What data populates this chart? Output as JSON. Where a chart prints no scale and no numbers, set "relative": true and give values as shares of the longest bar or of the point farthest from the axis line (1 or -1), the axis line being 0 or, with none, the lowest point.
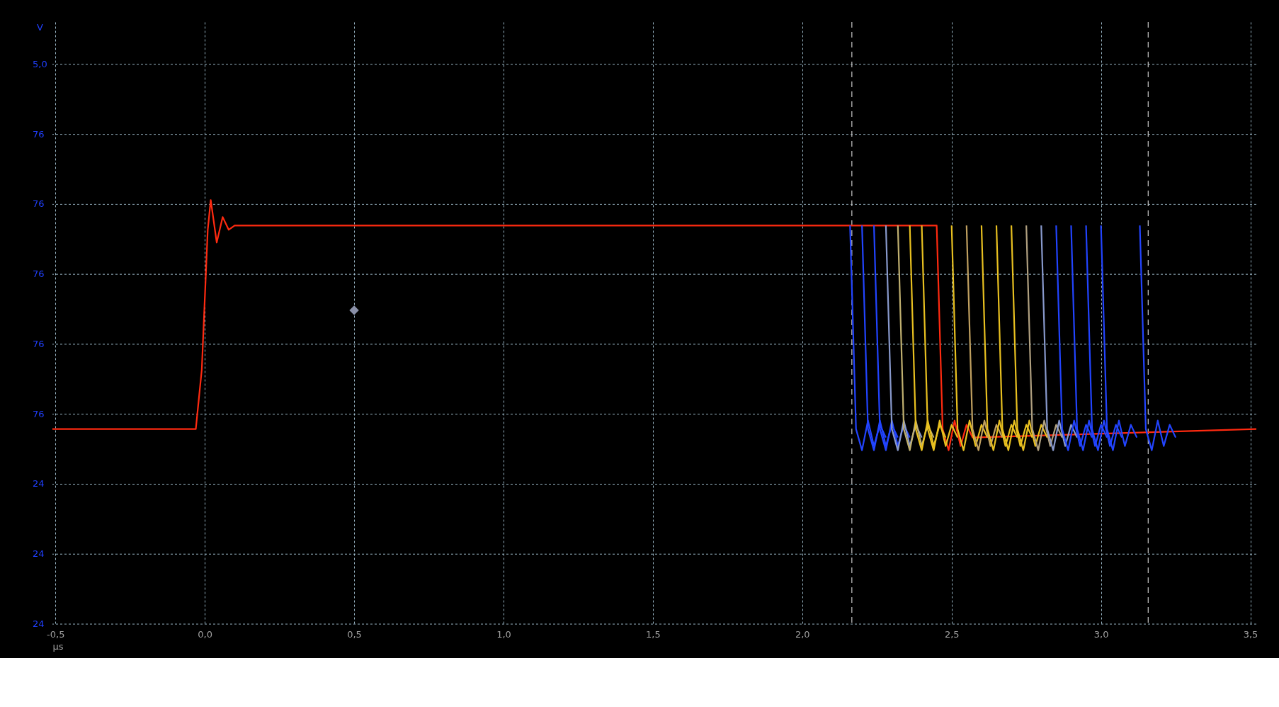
{
  "chart_data": {
    "type": "line",
    "relative": true,
    "xlabel": "µs",
    "grid": true,
    "line_style": "solid",
    "marker": "none",
    "xlim": [
      -0.51,
      3.52
    ],
    "xticks": [
      {
        "value": -0.5,
        "label": "-0,5"
      },
      {
        "value": 0,
        "label": "0,0"
      },
      {
        "value": 0.5,
        "label": "0,5"
      },
      {
        "value": 1,
        "label": "1,0"
      },
      {
        "value": 1.5,
        "label": "1,5"
      },
      {
        "value": 2,
        "label": "2,0"
      },
      {
        "value": 2.5,
        "label": "2,5"
      },
      {
        "value": 3,
        "label": "3,0"
      },
      {
        "value": 3.5,
        "label": "3,5"
      }
    ],
    "annotations": [
      {
        "text": "V"
      },
      "5,0",
      "76",
      "76",
      "76",
      "76",
      "76",
      "24",
      "24",
      "24"
    ],
    "ref_lines": [
      {
        "axis": "x",
        "value": 2.166,
        "color": "#c8c8c8",
        "line_style": "dashed"
      },
      {
        "axis": "x",
        "value": 3.158,
        "color": "#c8c8c8",
        "line_style": "dashed"
      }
    ],
    "series": [
      {
        "color": "#ff2a10",
        "x": [
          -0.51,
          -0.03,
          -0.01,
          0.01,
          0.02,
          0.04,
          0.06,
          0.08,
          0.1,
          2.45,
          2.47,
          2.49,
          2.51,
          2.53,
          2.55,
          2.57,
          3.52
        ],
        "values": [
          0.46,
          0.46,
          0.6,
          0.93,
          1.0,
          0.9,
          0.96,
          0.93,
          0.94,
          0.94,
          0.46,
          0.41,
          0.48,
          0.42,
          0.47,
          0.44,
          0.46
        ]
      },
      {
        "color": "#2244ff",
        "x": [
          2.16,
          2.18,
          2.2,
          2.22,
          2.24,
          2.26,
          2.28
        ],
        "values": [
          0.94,
          0.46,
          0.41,
          0.48,
          0.42,
          0.47,
          0.44
        ]
      },
      {
        "color": "#2244ff",
        "x": [
          2.2,
          2.22,
          2.24,
          2.26,
          2.28,
          2.3,
          2.32
        ],
        "values": [
          0.94,
          0.46,
          0.41,
          0.48,
          0.42,
          0.47,
          0.44
        ]
      },
      {
        "color": "#2244ff",
        "x": [
          2.24,
          2.26,
          2.28,
          2.3,
          2.32,
          2.34,
          2.36
        ],
        "values": [
          0.94,
          0.46,
          0.41,
          0.48,
          0.42,
          0.47,
          0.44
        ]
      },
      {
        "color": "#8899cc",
        "x": [
          2.28,
          2.3,
          2.32,
          2.34,
          2.36,
          2.38,
          2.4
        ],
        "values": [
          0.94,
          0.46,
          0.41,
          0.48,
          0.42,
          0.47,
          0.44
        ]
      },
      {
        "color": "#c0b070",
        "x": [
          2.32,
          2.34,
          2.36,
          2.38,
          2.4,
          2.42,
          2.44
        ],
        "values": [
          0.94,
          0.46,
          0.41,
          0.48,
          0.42,
          0.47,
          0.44
        ]
      },
      {
        "color": "#e8c020",
        "x": [
          2.36,
          2.38,
          2.4,
          2.42,
          2.44,
          2.46,
          2.48
        ],
        "values": [
          0.94,
          0.46,
          0.41,
          0.48,
          0.42,
          0.47,
          0.44
        ]
      },
      {
        "color": "#e8c020",
        "x": [
          2.4,
          2.42,
          2.44,
          2.46,
          2.48,
          2.5,
          2.52
        ],
        "values": [
          0.94,
          0.46,
          0.41,
          0.48,
          0.42,
          0.47,
          0.44
        ]
      },
      {
        "color": "#e8c020",
        "x": [
          2.5,
          2.52,
          2.54,
          2.56,
          2.58,
          2.6,
          2.62
        ],
        "values": [
          0.94,
          0.46,
          0.41,
          0.48,
          0.42,
          0.47,
          0.44
        ]
      },
      {
        "color": "#c0a060",
        "x": [
          2.55,
          2.57,
          2.59,
          2.61,
          2.63,
          2.65,
          2.67
        ],
        "values": [
          0.94,
          0.46,
          0.41,
          0.48,
          0.42,
          0.47,
          0.44
        ]
      },
      {
        "color": "#e8c020",
        "x": [
          2.6,
          2.62,
          2.64,
          2.66,
          2.68,
          2.7,
          2.72
        ],
        "values": [
          0.94,
          0.46,
          0.41,
          0.48,
          0.42,
          0.47,
          0.44
        ]
      },
      {
        "color": "#e8c020",
        "x": [
          2.65,
          2.67,
          2.69,
          2.71,
          2.73,
          2.75,
          2.77
        ],
        "values": [
          0.94,
          0.46,
          0.41,
          0.48,
          0.42,
          0.47,
          0.44
        ]
      },
      {
        "color": "#e8c020",
        "x": [
          2.7,
          2.72,
          2.74,
          2.76,
          2.78,
          2.8,
          2.82
        ],
        "values": [
          0.94,
          0.46,
          0.41,
          0.48,
          0.42,
          0.47,
          0.44
        ]
      },
      {
        "color": "#b0a080",
        "x": [
          2.75,
          2.77,
          2.79,
          2.81,
          2.83,
          2.85,
          2.87
        ],
        "values": [
          0.94,
          0.46,
          0.41,
          0.48,
          0.42,
          0.47,
          0.44
        ]
      },
      {
        "color": "#8899cc",
        "x": [
          2.8,
          2.82,
          2.84,
          2.86,
          2.88,
          2.9,
          2.92
        ],
        "values": [
          0.94,
          0.46,
          0.41,
          0.48,
          0.42,
          0.47,
          0.44
        ]
      },
      {
        "color": "#2244ff",
        "x": [
          2.85,
          2.87,
          2.89,
          2.91,
          2.93,
          2.95,
          2.97
        ],
        "values": [
          0.94,
          0.46,
          0.41,
          0.48,
          0.42,
          0.47,
          0.44
        ]
      },
      {
        "color": "#2244ff",
        "x": [
          2.9,
          2.92,
          2.94,
          2.96,
          2.98,
          3.0,
          3.02
        ],
        "values": [
          0.94,
          0.46,
          0.41,
          0.48,
          0.42,
          0.47,
          0.44
        ]
      },
      {
        "color": "#2244ff",
        "x": [
          2.95,
          2.97,
          2.99,
          3.01,
          3.03,
          3.05,
          3.07
        ],
        "values": [
          0.94,
          0.46,
          0.41,
          0.48,
          0.42,
          0.47,
          0.44
        ]
      },
      {
        "color": "#2244ff",
        "x": [
          3.0,
          3.02,
          3.04,
          3.06,
          3.08,
          3.1,
          3.12
        ],
        "values": [
          0.94,
          0.46,
          0.41,
          0.48,
          0.42,
          0.47,
          0.44
        ]
      },
      {
        "color": "#2244ff",
        "x": [
          3.13,
          3.15,
          3.17,
          3.19,
          3.21,
          3.23,
          3.25
        ],
        "values": [
          0.94,
          0.46,
          0.41,
          0.48,
          0.42,
          0.47,
          0.44
        ]
      },
      {
        "type": "scatter",
        "marker": "diamond",
        "color": "#8a90a8",
        "x": [
          0.5
        ],
        "values": [
          0.74
        ]
      }
    ]
  }
}
